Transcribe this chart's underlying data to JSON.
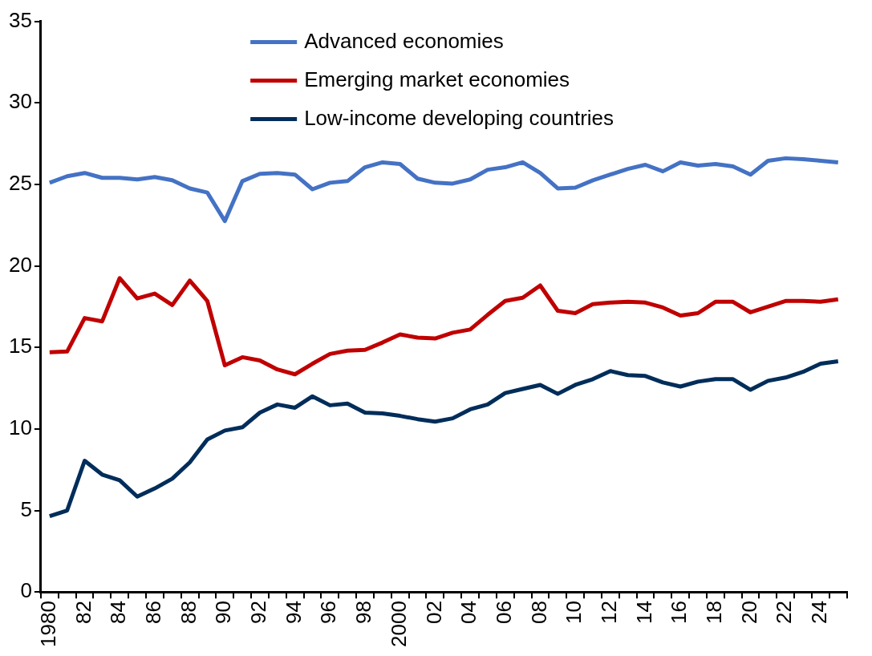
{
  "chart_data": {
    "type": "line",
    "categories": [
      "1980",
      null,
      "82",
      null,
      "84",
      null,
      "86",
      null,
      "88",
      null,
      "90",
      null,
      "92",
      null,
      "94",
      null,
      "96",
      null,
      "98",
      null,
      "2000",
      null,
      "02",
      null,
      "04",
      null,
      "06",
      null,
      "08",
      null,
      "10",
      null,
      "12",
      null,
      "14",
      null,
      "16",
      null,
      "18",
      null,
      "20",
      null,
      "22",
      null,
      "24",
      null
    ],
    "series": [
      {
        "name": "Advanced economies",
        "color": "#4472c4",
        "values": [
          25.1,
          25.5,
          25.7,
          25.4,
          25.4,
          25.3,
          25.45,
          25.25,
          24.75,
          24.5,
          22.75,
          25.2,
          25.65,
          25.7,
          25.6,
          24.7,
          25.1,
          25.2,
          26.05,
          26.35,
          26.25,
          25.35,
          25.1,
          25.05,
          25.3,
          25.9,
          26.05,
          26.35,
          25.7,
          24.75,
          24.8,
          25.25,
          25.6,
          25.95,
          26.2,
          25.8,
          26.35,
          26.15,
          26.25,
          26.1,
          25.6,
          26.45,
          26.6,
          26.55,
          26.45,
          26.35
        ]
      },
      {
        "name": "Emerging market economies",
        "color": "#c00000",
        "values": [
          14.7,
          14.75,
          16.8,
          16.6,
          19.25,
          18.0,
          18.3,
          17.6,
          19.1,
          17.85,
          13.9,
          14.4,
          14.2,
          13.65,
          13.35,
          14.0,
          14.6,
          14.8,
          14.85,
          15.3,
          15.8,
          15.6,
          15.55,
          15.9,
          16.1,
          17.0,
          17.85,
          18.05,
          18.8,
          17.25,
          17.1,
          17.65,
          17.75,
          17.8,
          17.75,
          17.45,
          16.95,
          17.1,
          17.8,
          17.8,
          17.15,
          17.5,
          17.85,
          17.85,
          17.8,
          17.95
        ]
      },
      {
        "name": "Low-income developing countries",
        "color": "#002d5a",
        "values": [
          4.65,
          5.0,
          8.05,
          7.2,
          6.85,
          5.85,
          6.35,
          6.95,
          7.95,
          9.35,
          9.9,
          10.1,
          11.0,
          11.5,
          11.3,
          12.0,
          11.45,
          11.55,
          11.0,
          10.95,
          10.8,
          10.6,
          10.45,
          10.65,
          11.2,
          11.5,
          12.2,
          12.45,
          12.7,
          12.15,
          12.7,
          13.05,
          13.55,
          13.3,
          13.25,
          12.85,
          12.6,
          12.9,
          13.05,
          13.05,
          12.4,
          12.95,
          13.15,
          13.5,
          14.0,
          14.15
        ]
      }
    ],
    "ylim": [
      0,
      35
    ],
    "yticks": [
      0,
      5,
      10,
      15,
      20,
      25,
      30,
      35
    ],
    "grid": false,
    "legend": "top",
    "marker": "none",
    "line_style": "solid"
  }
}
